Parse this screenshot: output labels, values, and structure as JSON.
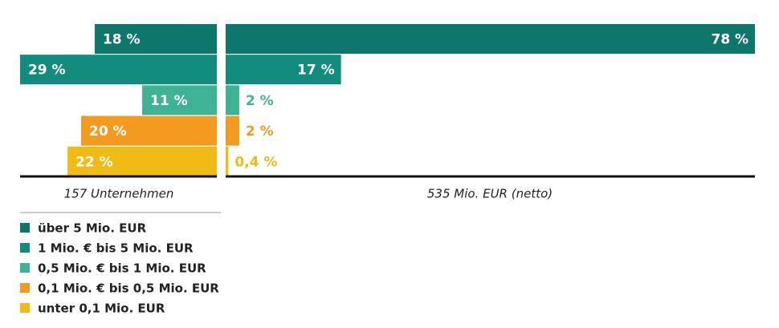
{
  "chart_data": {
    "type": "bar",
    "categories": [
      "157 Unternehmen",
      "535 Mio. EUR (netto)"
    ],
    "series": [
      {
        "name": "über 5 Mio. EUR",
        "color": "#0e766b",
        "values": [
          18,
          78
        ],
        "value_labels": [
          "18 %",
          "78 %"
        ]
      },
      {
        "name": "1 Mio. € bis 5 Mio. EUR",
        "color": "#128c7c",
        "values": [
          29,
          17
        ],
        "value_labels": [
          "29 %",
          "17 %"
        ]
      },
      {
        "name": "0,5 Mio. € bis 1 Mio. EUR",
        "color": "#3db394",
        "values": [
          11,
          2
        ],
        "value_labels": [
          "11 %",
          "2 %"
        ]
      },
      {
        "name": "0,1 Mio. € bis 0,5 Mio. EUR",
        "color": "#f39a1f",
        "values": [
          20,
          2
        ],
        "value_labels": [
          "20 %",
          "2 %"
        ]
      },
      {
        "name": "unter 0,1 Mio. EUR",
        "color": "#f0bb14",
        "values": [
          22,
          0.4
        ],
        "value_labels": [
          "22 %",
          "0,4 %"
        ]
      }
    ]
  }
}
